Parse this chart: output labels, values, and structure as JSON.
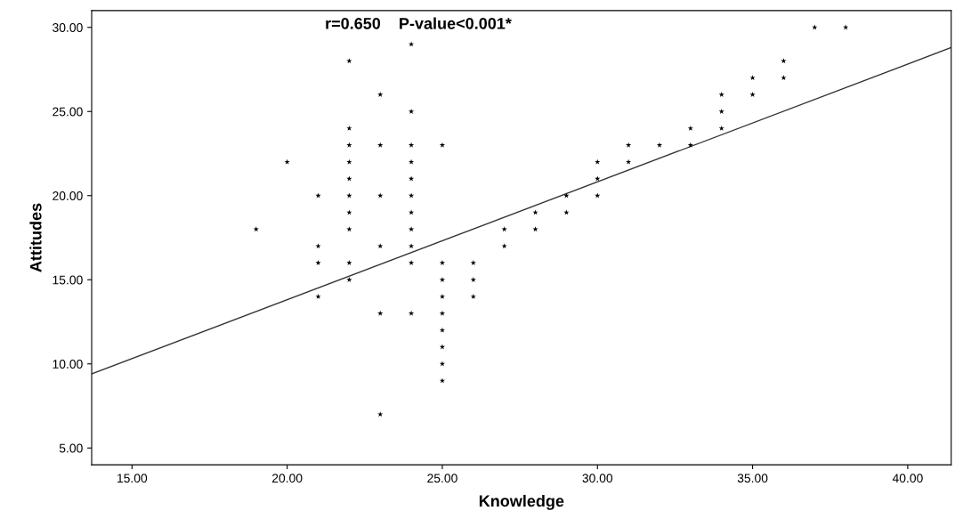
{
  "chart_data": {
    "type": "scatter",
    "xlabel": "Knowledge",
    "ylabel": "Attitudes",
    "annotations": [
      "r=0.650    P-value<0.001*"
    ],
    "xlim": [
      13.7,
      41.4
    ],
    "ylim": [
      4,
      31
    ],
    "xticks": [
      {
        "value": 15,
        "label": "15.00"
      },
      {
        "value": 20,
        "label": "20.00"
      },
      {
        "value": 25,
        "label": "25.00"
      },
      {
        "value": 30,
        "label": "30.00"
      },
      {
        "value": 35,
        "label": "35.00"
      },
      {
        "value": 40,
        "label": "40.00"
      }
    ],
    "yticks": [
      {
        "value": 5,
        "label": "5.00"
      },
      {
        "value": 10,
        "label": "10.00"
      },
      {
        "value": 15,
        "label": "15.00"
      },
      {
        "value": 20,
        "label": "20.00"
      },
      {
        "value": 25,
        "label": "25.00"
      },
      {
        "value": 30,
        "label": "30.00"
      }
    ],
    "grid": false,
    "legend": false,
    "series": [
      {
        "color": "#000000",
        "marker": "star",
        "x": [
          19,
          20,
          21,
          21,
          21,
          21,
          22,
          22,
          22,
          22,
          22,
          22,
          22,
          22,
          22,
          22,
          23,
          23,
          23,
          23,
          23,
          23,
          24,
          24,
          24,
          24,
          24,
          24,
          24,
          24,
          24,
          24,
          24,
          25,
          25,
          25,
          25,
          25,
          25,
          25,
          25,
          25,
          26,
          26,
          26,
          27,
          27,
          28,
          28,
          29,
          29,
          30,
          30,
          30,
          31,
          31,
          32,
          33,
          33,
          34,
          34,
          34,
          35,
          35,
          36,
          36,
          37,
          38
        ],
        "values": [
          18,
          22,
          20,
          17,
          16,
          14,
          28,
          24,
          23,
          22,
          21,
          20,
          19,
          18,
          16,
          15,
          26,
          23,
          20,
          17,
          13,
          7,
          29,
          25,
          23,
          22,
          21,
          20,
          19,
          18,
          17,
          16,
          13,
          23,
          16,
          15,
          14,
          13,
          12,
          11,
          10,
          9,
          16,
          15,
          14,
          18,
          17,
          19,
          18,
          20,
          19,
          22,
          21,
          20,
          23,
          22,
          23,
          24,
          23,
          26,
          25,
          24,
          27,
          26,
          28,
          27,
          30,
          30
        ]
      },
      {
        "type": "line",
        "color": "#333333",
        "marker": "none",
        "line_style": "solid",
        "x": [
          13.7,
          41.4
        ],
        "values": [
          9.4,
          28.8
        ]
      }
    ]
  }
}
